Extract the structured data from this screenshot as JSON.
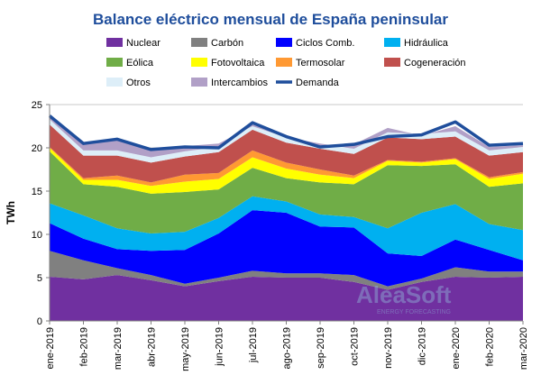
{
  "chart_data": {
    "type": "area",
    "stacked": true,
    "title": "Balance eléctrico mensual de España peninsular",
    "xlabel": "",
    "ylabel": "TWh",
    "ylim": [
      0,
      25
    ],
    "yticks": [
      0,
      5,
      10,
      15,
      20,
      25
    ],
    "grid": true,
    "legend_position": "top",
    "categories": [
      "ene-2019",
      "feb-2019",
      "mar-2019",
      "abr-2019",
      "may-2019",
      "jun-2019",
      "jul-2019",
      "ago-2019",
      "sep-2019",
      "oct-2019",
      "nov-2019",
      "dic-2019",
      "ene-2020",
      "feb-2020",
      "mar-2020"
    ],
    "series": [
      {
        "name": "Nuclear",
        "color": "#7030a0",
        "values": [
          5.1,
          4.8,
          5.3,
          4.7,
          4.0,
          4.6,
          5.1,
          5.0,
          5.0,
          4.5,
          3.6,
          4.5,
          5.1,
          5.0,
          5.1
        ]
      },
      {
        "name": "Carbón",
        "color": "#808080",
        "values": [
          3.0,
          2.2,
          0.8,
          0.6,
          0.3,
          0.4,
          0.7,
          0.5,
          0.5,
          0.8,
          0.4,
          0.4,
          1.1,
          0.7,
          0.6
        ]
      },
      {
        "name": "Ciclos Comb.",
        "color": "#0000ff",
        "values": [
          3.2,
          2.5,
          2.2,
          2.8,
          3.9,
          5.1,
          7.0,
          7.0,
          5.4,
          5.5,
          3.8,
          2.6,
          3.2,
          2.5,
          1.3
        ]
      },
      {
        "name": "Hidráulica",
        "color": "#00b0f0",
        "values": [
          2.3,
          2.7,
          2.4,
          2.0,
          2.1,
          1.8,
          1.6,
          1.3,
          1.4,
          1.2,
          2.9,
          5.0,
          4.1,
          3.0,
          3.5
        ]
      },
      {
        "name": "Eólica",
        "color": "#70ad47",
        "values": [
          6.0,
          3.6,
          4.8,
          4.6,
          4.6,
          3.3,
          3.3,
          2.7,
          3.7,
          3.8,
          7.3,
          5.4,
          4.6,
          4.3,
          5.4
        ]
      },
      {
        "name": "Fotovoltaica",
        "color": "#ffff00",
        "values": [
          0.4,
          0.5,
          0.8,
          0.9,
          1.2,
          1.2,
          1.2,
          1.1,
          0.9,
          0.7,
          0.5,
          0.4,
          0.6,
          0.9,
          1.1
        ]
      },
      {
        "name": "Termosolar",
        "color": "#ff9933",
        "values": [
          0.1,
          0.2,
          0.5,
          0.4,
          0.8,
          0.7,
          0.8,
          0.7,
          0.6,
          0.3,
          0.1,
          0.1,
          0.1,
          0.2,
          0.2
        ]
      },
      {
        "name": "Cogeneración",
        "color": "#c0504d",
        "values": [
          2.6,
          2.6,
          2.3,
          2.3,
          2.1,
          2.4,
          2.4,
          2.3,
          2.4,
          2.5,
          2.6,
          2.6,
          2.5,
          2.5,
          2.3
        ]
      },
      {
        "name": "Otros",
        "color": "#ddeef8",
        "values": [
          0.6,
          0.6,
          0.6,
          0.6,
          0.6,
          0.6,
          0.6,
          0.6,
          0.6,
          0.6,
          0.6,
          0.6,
          0.6,
          0.6,
          0.6
        ]
      },
      {
        "name": "Intercambios",
        "color": "#b1a0c7",
        "values": [
          0.3,
          0.7,
          1.3,
          0.8,
          0.6,
          0.4,
          -0.2,
          0.0,
          -0.5,
          0.5,
          0.5,
          -0.2,
          0.6,
          0.4,
          0.2
        ]
      }
    ],
    "line_series": [
      {
        "name": "Demanda",
        "color": "#1f4e9c",
        "values": [
          23.7,
          20.5,
          21.0,
          19.8,
          20.1,
          20.0,
          22.9,
          21.3,
          20.1,
          20.4,
          21.3,
          21.5,
          23.0,
          20.3,
          20.5
        ]
      }
    ]
  },
  "watermark": {
    "brand": "AleaSoft",
    "tagline": "ENERGY FORECASTING"
  }
}
